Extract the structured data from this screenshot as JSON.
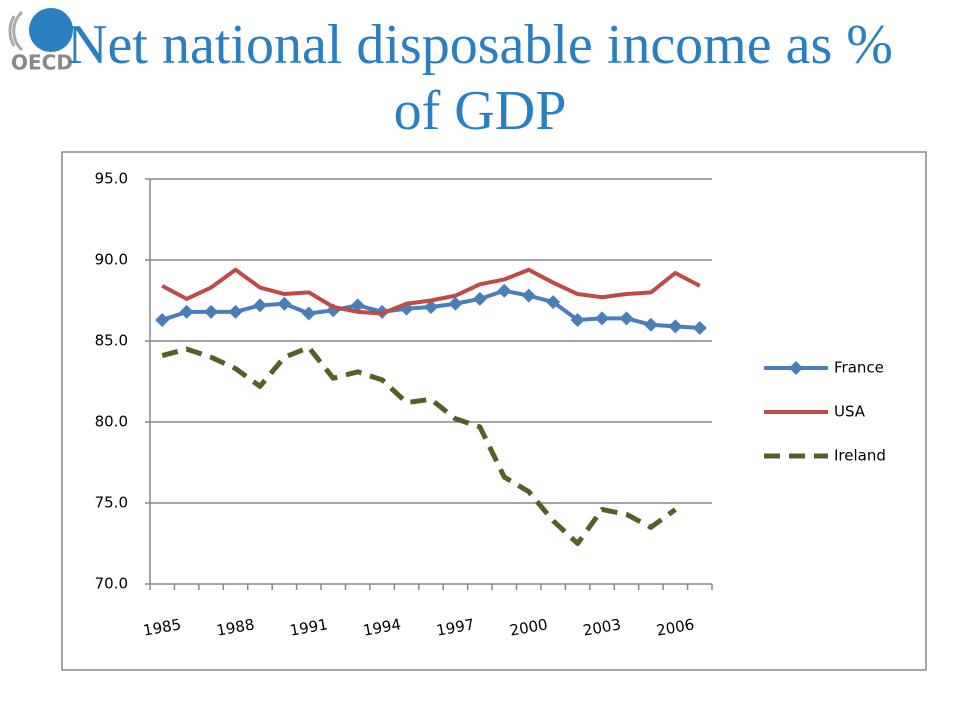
{
  "logo": "OECD",
  "chart_data": {
    "type": "line",
    "title": "Net national disposable income as % of GDP",
    "categories": [
      "1985",
      null,
      null,
      "1988",
      null,
      null,
      "1991",
      null,
      null,
      "1994",
      null,
      null,
      "1997",
      null,
      null,
      "2000",
      null,
      null,
      "2003",
      null,
      null,
      "2006",
      null
    ],
    "series": [
      {
        "name": "France",
        "color": "#4a7ebb",
        "marker": "diamond",
        "dash": false,
        "values": [
          86.3,
          86.8,
          86.8,
          86.8,
          87.2,
          87.3,
          86.7,
          86.9,
          87.2,
          86.8,
          87.0,
          87.1,
          87.3,
          87.6,
          88.1,
          87.8,
          87.4,
          86.3,
          86.4,
          86.4,
          86.0,
          85.9,
          85.8
        ]
      },
      {
        "name": "USA",
        "color": "#be4b48",
        "marker": "none",
        "dash": false,
        "values": [
          88.4,
          87.6,
          88.3,
          89.4,
          88.3,
          87.9,
          88.0,
          87.1,
          86.8,
          86.7,
          87.3,
          87.5,
          87.8,
          88.5,
          88.8,
          89.4,
          88.6,
          87.9,
          87.7,
          87.9,
          88.0,
          89.2,
          88.4
        ]
      },
      {
        "name": "Ireland",
        "color": "#4f6228",
        "marker": "none",
        "dash": true,
        "values": [
          84.1,
          84.5,
          84.0,
          83.3,
          82.2,
          84.0,
          84.6,
          82.7,
          83.1,
          82.6,
          81.2,
          81.4,
          80.2,
          79.7,
          76.6,
          75.7,
          73.9,
          72.5,
          74.6,
          74.3,
          73.5,
          74.6,
          null
        ]
      }
    ],
    "ylim": [
      70,
      95
    ],
    "yticks": [
      {
        "value": 70,
        "label": "70.0"
      },
      {
        "value": 75,
        "label": "75.0"
      },
      {
        "value": 80,
        "label": "80.0"
      },
      {
        "value": 85,
        "label": "85.0"
      },
      {
        "value": 90,
        "label": "90.0"
      },
      {
        "value": 95,
        "label": "95.0"
      }
    ],
    "grid": true,
    "legend": "right"
  }
}
